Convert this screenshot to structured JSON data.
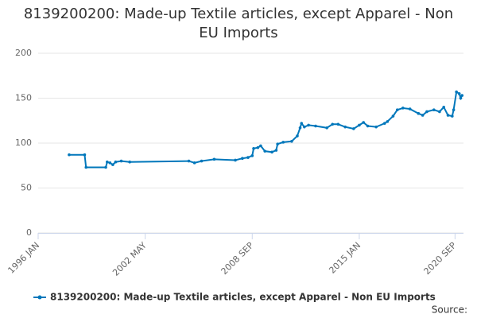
{
  "chart_data": {
    "type": "line",
    "title": "8139200200: Made-up Textile articles, except Apparel - Non EU Imports",
    "source": "Source:",
    "x": [
      "1997 NOV",
      "1998 OCT",
      "1998 NOV",
      "2000 JAN",
      "2000 FEB",
      "2000 APR",
      "2000 JUN",
      "2000 AUG",
      "2000 DEC",
      "2001 JUN",
      "2004 DEC",
      "2005 APR",
      "2005 SEP",
      "2006 JUN",
      "2007 SEP",
      "2008 FEB",
      "2008 JUN",
      "2008 SEP",
      "2008 OCT",
      "2009 JAN",
      "2009 MAR",
      "2009 JUN",
      "2009 NOV",
      "2010 FEB",
      "2010 MAR",
      "2010 JUL",
      "2011 JAN",
      "2011 MAY",
      "2011 JUL",
      "2011 AUG",
      "2011 OCT",
      "2012 JAN",
      "2012 JUN",
      "2013 FEB",
      "2013 JUN",
      "2013 OCT",
      "2014 MAR",
      "2014 SEP",
      "2015 JAN",
      "2015 APR",
      "2015 JUL",
      "2016 JAN",
      "2016 JUL",
      "2016 SEP",
      "2017 JAN",
      "2017 APR",
      "2017 AUG",
      "2018 JAN",
      "2018 JUL",
      "2018 OCT",
      "2019 JAN",
      "2019 JUN",
      "2019 OCT",
      "2020 JAN",
      "2020 APR",
      "2020 JUL",
      "2020 AUG",
      "2020 OCT",
      "2020 DEC",
      "2021 JAN",
      "2021 FEB"
    ],
    "series": [
      {
        "name": "8139200200: Made-up Textile articles, except Apparel - Non EU Imports",
        "color": "#0077bb",
        "values": [
          87,
          87,
          73,
          73,
          79,
          78,
          76,
          79,
          80,
          79,
          80,
          78,
          80,
          82,
          81,
          83,
          84,
          86,
          94,
          95,
          97,
          91,
          90,
          92,
          99,
          101,
          102,
          108,
          117,
          122,
          118,
          120,
          119,
          117,
          121,
          121,
          118,
          116,
          120,
          123,
          119,
          118,
          122,
          124,
          130,
          137,
          139,
          138,
          133,
          131,
          135,
          137,
          135,
          140,
          131,
          130,
          137,
          157,
          155,
          150,
          153
        ]
      }
    ],
    "xlim": [
      "1996 JAN",
      "2021 MAR"
    ],
    "xticks": [
      "1996 JAN",
      "2002 MAY",
      "2008 SEP",
      "2015 JAN",
      "2020 SEP"
    ],
    "ylim": [
      0,
      200
    ],
    "yticks": [
      0,
      50,
      100,
      150,
      200
    ],
    "grid": true
  }
}
